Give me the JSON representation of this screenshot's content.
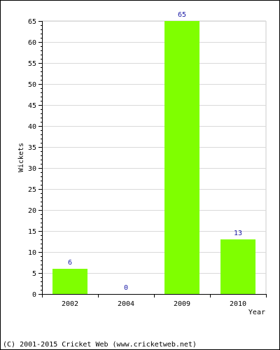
{
  "chart_data": {
    "type": "bar",
    "categories": [
      "2002",
      "2004",
      "2009",
      "2010"
    ],
    "values": [
      6,
      0,
      65,
      13
    ],
    "title": "",
    "xlabel": "Year",
    "ylabel": "Wickets",
    "ylim": [
      0,
      65
    ],
    "yticks": [
      "0",
      "5",
      "10",
      "15",
      "20",
      "25",
      "30",
      "35",
      "40",
      "45",
      "50",
      "55",
      "60",
      "65"
    ],
    "data_labels": [
      "6",
      "0",
      "65",
      "13"
    ],
    "grid": true,
    "bar_color": "#7fff00",
    "label_color": "#1a1aa6"
  },
  "footer": {
    "copyright": "(C) 2001-2015 Cricket Web (www.cricketweb.net)"
  }
}
